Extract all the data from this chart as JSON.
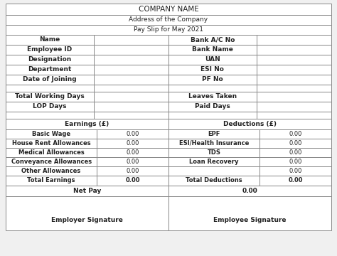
{
  "company_name": "COMPANY NAME",
  "address": "Address of the Company",
  "pay_slip_title": "Pay Slip for May 2021",
  "employee_fields_left": [
    "Name",
    "Employee ID",
    "Designation",
    "Department",
    "Date of Joining"
  ],
  "employee_fields_right": [
    "Bank A/C No",
    "Bank Name",
    "UAN",
    "ESI No",
    "PF No"
  ],
  "attendance_left": [
    "Total Working Days",
    "LOP Days"
  ],
  "attendance_right": [
    "Leaves Taken",
    "Paid Days"
  ],
  "earnings_header": "Earnings (£)",
  "deductions_header": "Deductions (£)",
  "earnings_items": [
    "Basic Wage",
    "House Rent Allowances",
    "Medical Allowances",
    "Conveyance Allowances",
    "Other Allowances"
  ],
  "deductions_items": [
    "EPF",
    "ESI/Health Insurance",
    "TDS",
    "Loan Recovery",
    ""
  ],
  "total_earnings_label": "Total Earnings",
  "total_deductions_label": "Total Deductions",
  "net_pay_label": "Net Pay",
  "employer_sig": "Employer Signature",
  "employee_sig": "Employee Signature",
  "bg_color": "#f0f0f0",
  "table_bg": "#ffffff",
  "border_color": "#888888",
  "text_color": "#222222",
  "font_size": 6.5,
  "title_font_size": 7.5
}
